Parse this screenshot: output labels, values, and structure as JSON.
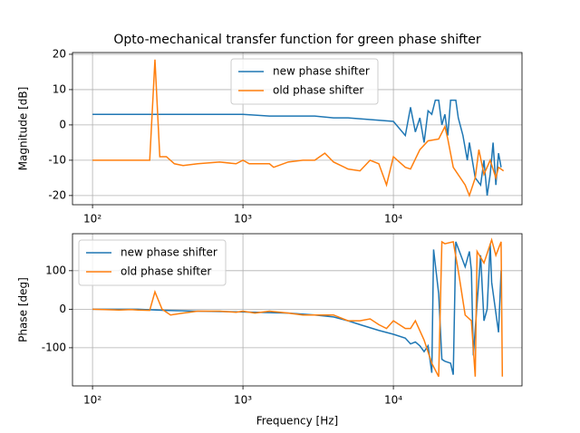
{
  "chart_data": [
    {
      "type": "line",
      "title": "Opto-mechanical transfer function for green phase shifter",
      "ylabel": "Magnitude [dB]",
      "xscale": "log",
      "grid": true,
      "legend": "upper center",
      "xlim": [
        73.6,
        71600
      ],
      "ylim": [
        -22.6,
        20.5
      ],
      "xticks": [
        {
          "value": 100,
          "label": "10²"
        },
        {
          "value": 1000,
          "label": "10³"
        },
        {
          "value": 10000,
          "label": "10⁴"
        }
      ],
      "yticks": [
        -20,
        -10,
        0,
        10,
        20
      ],
      "series": [
        {
          "name": "new phase shifter",
          "color": "#1f77b4",
          "x": [
            100,
            130,
            160,
            200,
            250,
            300,
            400,
            500,
            700,
            900,
            1000,
            1500,
            2000,
            3000,
            4000,
            5000,
            7000,
            10000,
            12000,
            13000,
            14000,
            15000,
            16000,
            17000,
            18000,
            19000,
            20000,
            21000,
            22000,
            23000,
            24000,
            26000,
            27000,
            29000,
            31000,
            32000,
            35000,
            38000,
            40000,
            42000,
            44000,
            46000,
            48000,
            50000,
            52000
          ],
          "values": [
            3,
            3,
            3,
            3,
            3,
            3,
            3,
            3,
            3,
            3,
            3,
            2.5,
            2.5,
            2.5,
            2,
            2,
            1.5,
            1,
            -3,
            5,
            -2,
            2,
            -5,
            4,
            3,
            7,
            7,
            0,
            3,
            -3,
            7,
            7,
            2,
            -3,
            -10,
            -5,
            -15,
            -17,
            -10,
            -20,
            -14,
            -5,
            -17,
            -8,
            -12
          ]
        },
        {
          "name": "old phase shifter",
          "color": "#ff7f0e",
          "x": [
            100,
            150,
            200,
            240,
            260,
            280,
            310,
            350,
            400,
            500,
            700,
            900,
            1000,
            1100,
            1500,
            1600,
            2000,
            2500,
            3000,
            3500,
            4000,
            5000,
            6000,
            7000,
            8000,
            9000,
            10000,
            12000,
            13000,
            15000,
            17000,
            20000,
            22000,
            23000,
            25000,
            30000,
            32000,
            35000,
            37000,
            40000,
            44000,
            48000,
            50000,
            54000
          ],
          "values": [
            -10,
            -10,
            -10,
            -10,
            18.5,
            -9,
            -9,
            -11,
            -11.5,
            -11,
            -10.5,
            -11,
            -10,
            -11,
            -11,
            -12,
            -10.5,
            -10,
            -10,
            -8,
            -10.5,
            -12.5,
            -13,
            -10,
            -11,
            -17,
            -9,
            -12,
            -12.5,
            -7,
            -4.5,
            -4,
            -0.5,
            -4,
            -12,
            -17,
            -20,
            -15,
            -7,
            -14,
            -10,
            -15,
            -12,
            -13
          ]
        }
      ]
    },
    {
      "type": "line",
      "ylabel": "Phase [deg]",
      "xlabel": "Frequency [Hz]",
      "xscale": "log",
      "grid": true,
      "legend": "upper left",
      "xlim": [
        73.6,
        71600
      ],
      "ylim": [
        -199,
        196
      ],
      "xticks": [
        {
          "value": 100,
          "label": "10²"
        },
        {
          "value": 1000,
          "label": "10³"
        },
        {
          "value": 10000,
          "label": "10⁴"
        }
      ],
      "yticks": [
        -100,
        0,
        100
      ],
      "series": [
        {
          "name": "new phase shifter",
          "color": "#1f77b4",
          "x": [
            100,
            200,
            300,
            500,
            1000,
            2000,
            3000,
            4000,
            5000,
            6000,
            8000,
            10000,
            12000,
            13000,
            14000,
            15000,
            16000,
            17000,
            18000,
            18500,
            20000,
            21000,
            22000,
            24000,
            25000,
            26000,
            30000,
            32000,
            33000,
            34000,
            38000,
            40000,
            42000,
            44000,
            45000,
            50000,
            52000
          ],
          "values": [
            0,
            0,
            -3,
            -5,
            -7,
            -10,
            -15,
            -20,
            -30,
            -40,
            -55,
            -65,
            -75,
            -90,
            -85,
            -95,
            -110,
            -95,
            -165,
            155,
            40,
            -130,
            -135,
            -140,
            -170,
            175,
            110,
            150,
            100,
            -120,
            140,
            -30,
            0,
            170,
            70,
            -60,
            100
          ]
        },
        {
          "name": "old phase shifter",
          "color": "#ff7f0e",
          "x": [
            100,
            150,
            180,
            200,
            240,
            260,
            290,
            330,
            400,
            500,
            700,
            900,
            1000,
            1200,
            1500,
            2000,
            2500,
            3000,
            4000,
            5000,
            6000,
            7000,
            8000,
            9000,
            10000,
            12000,
            13000,
            14000,
            16000,
            18000,
            20000,
            21000,
            22000,
            25000,
            27000,
            30000,
            33000,
            35000,
            36000,
            40000,
            45000,
            48000,
            52000,
            53000
          ],
          "values": [
            0,
            -2,
            -1,
            -2,
            -3,
            45,
            0,
            -15,
            -10,
            -5,
            -5,
            -8,
            -5,
            -10,
            -5,
            -10,
            -15,
            -15,
            -15,
            -30,
            -30,
            -25,
            -40,
            -50,
            -30,
            -50,
            -50,
            -30,
            -80,
            -140,
            -175,
            175,
            170,
            175,
            100,
            -15,
            -30,
            -175,
            150,
            120,
            180,
            140,
            175,
            -175
          ]
        }
      ]
    }
  ]
}
